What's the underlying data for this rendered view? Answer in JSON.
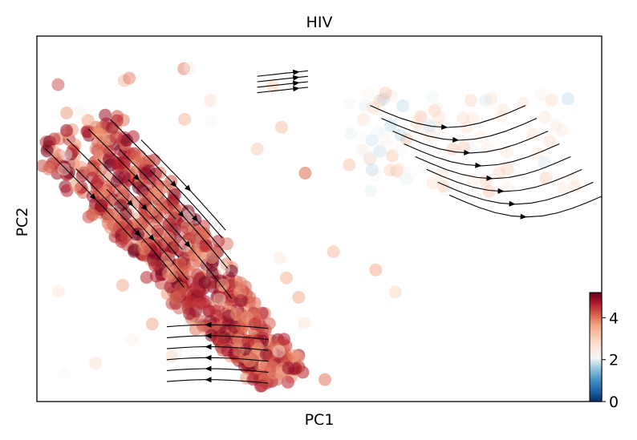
{
  "chart_data": {
    "type": "scatter",
    "title": "HIV",
    "xlabel": "PC1",
    "ylabel": "PC2",
    "x_ticks": false,
    "y_ticks": false,
    "overlay": "velocity streamlines with arrowheads (black)",
    "colorbar": {
      "min": 0,
      "max": 5.2,
      "ticks": [
        0,
        2,
        4
      ],
      "tick_labels": [
        "0",
        "2",
        "4"
      ],
      "colormap": "RdBu_r"
    },
    "clusters": [
      {
        "description": "dense diagonal band, high values",
        "x_range": [
          -1.0,
          -0.35
        ],
        "y_range": [
          -0.95,
          0.75
        ],
        "value_range": [
          3.8,
          5.2
        ]
      },
      {
        "description": "upper-right sparse cloud, mid values",
        "x_range": [
          0.25,
          0.95
        ],
        "y_range": [
          0.15,
          0.85
        ],
        "value_range": [
          1.5,
          3.5
        ]
      }
    ],
    "colors": {
      "low": "#053061",
      "mid": "#f7f7f7",
      "high": "#67001f",
      "streamline": "#000000"
    }
  }
}
